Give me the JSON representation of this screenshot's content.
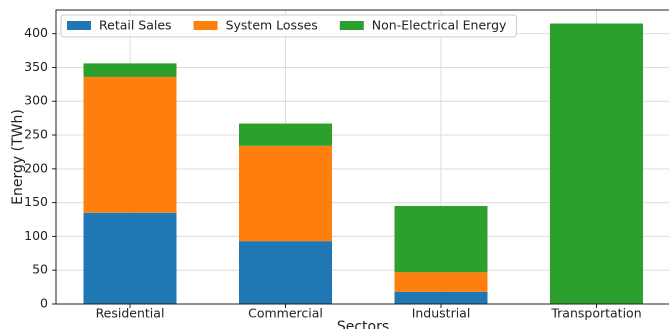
{
  "chart_data": {
    "type": "stacked_bar",
    "x_label": "Sectors",
    "y_label": "Energy (TWh)",
    "categories": [
      "Residential",
      "Commercial",
      "Industrial",
      "Transportation"
    ],
    "series": [
      {
        "name": "Retail Sales",
        "color": "#1f77b4",
        "values": [
          135,
          93,
          18,
          0
        ]
      },
      {
        "name": "System Losses",
        "color": "#ff7f0e",
        "values": [
          201,
          141,
          29,
          0
        ]
      },
      {
        "name": "Non-Electrical Energy",
        "color": "#2ca02c",
        "values": [
          20,
          33,
          98,
          415
        ]
      }
    ],
    "ylim": [
      0,
      435
    ],
    "yticks": [
      0,
      50,
      100,
      150,
      200,
      250,
      300,
      350,
      400
    ],
    "grid": true,
    "legend": "upper left"
  }
}
